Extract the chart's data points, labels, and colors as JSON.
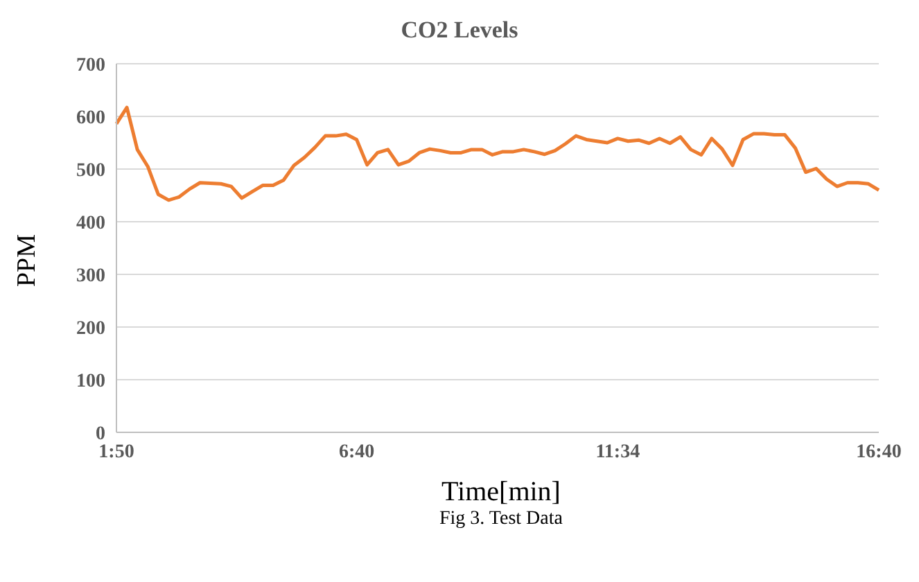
{
  "chart_data": {
    "type": "line",
    "title": "CO2 Levels",
    "xlabel": "Time[min]",
    "ylabel": "PPM",
    "annotations": [
      "Fig 3. Test Data"
    ],
    "categories": [
      "1:50",
      null,
      null,
      null,
      null,
      null,
      null,
      null,
      null,
      null,
      null,
      null,
      null,
      null,
      null,
      null,
      null,
      null,
      null,
      null,
      null,
      null,
      null,
      "6:40",
      null,
      null,
      null,
      null,
      null,
      null,
      null,
      null,
      null,
      null,
      null,
      null,
      null,
      null,
      null,
      null,
      null,
      null,
      null,
      null,
      null,
      null,
      null,
      null,
      "11:34",
      null,
      null,
      null,
      null,
      null,
      null,
      null,
      null,
      null,
      null,
      null,
      null,
      null,
      null,
      null,
      null,
      null,
      null,
      null,
      null,
      null,
      null,
      null,
      null,
      "16:40"
    ],
    "series": [
      {
        "color": "#ed7d31",
        "values": [
          586,
          617,
          537,
          505,
          452,
          441,
          447,
          462,
          474,
          473,
          472,
          467,
          445,
          457,
          469,
          469,
          479,
          507,
          522,
          541,
          563,
          563,
          566,
          556,
          508,
          531,
          537,
          508,
          515,
          531,
          538,
          535,
          531,
          531,
          537,
          537,
          527,
          533,
          533,
          537,
          533,
          528,
          535,
          548,
          563,
          556,
          553,
          550,
          558,
          553,
          555,
          549,
          558,
          549,
          561,
          537,
          527,
          558,
          538,
          507,
          556,
          567,
          567,
          565,
          565,
          540,
          494,
          501,
          481,
          467,
          474,
          474,
          472,
          460
        ]
      }
    ],
    "ylim": [
      0,
      700
    ],
    "yticks": [
      0,
      100,
      200,
      300,
      400,
      500,
      600,
      700
    ],
    "grid": "y",
    "legend": false,
    "marker": "none",
    "line_style": "solid"
  }
}
